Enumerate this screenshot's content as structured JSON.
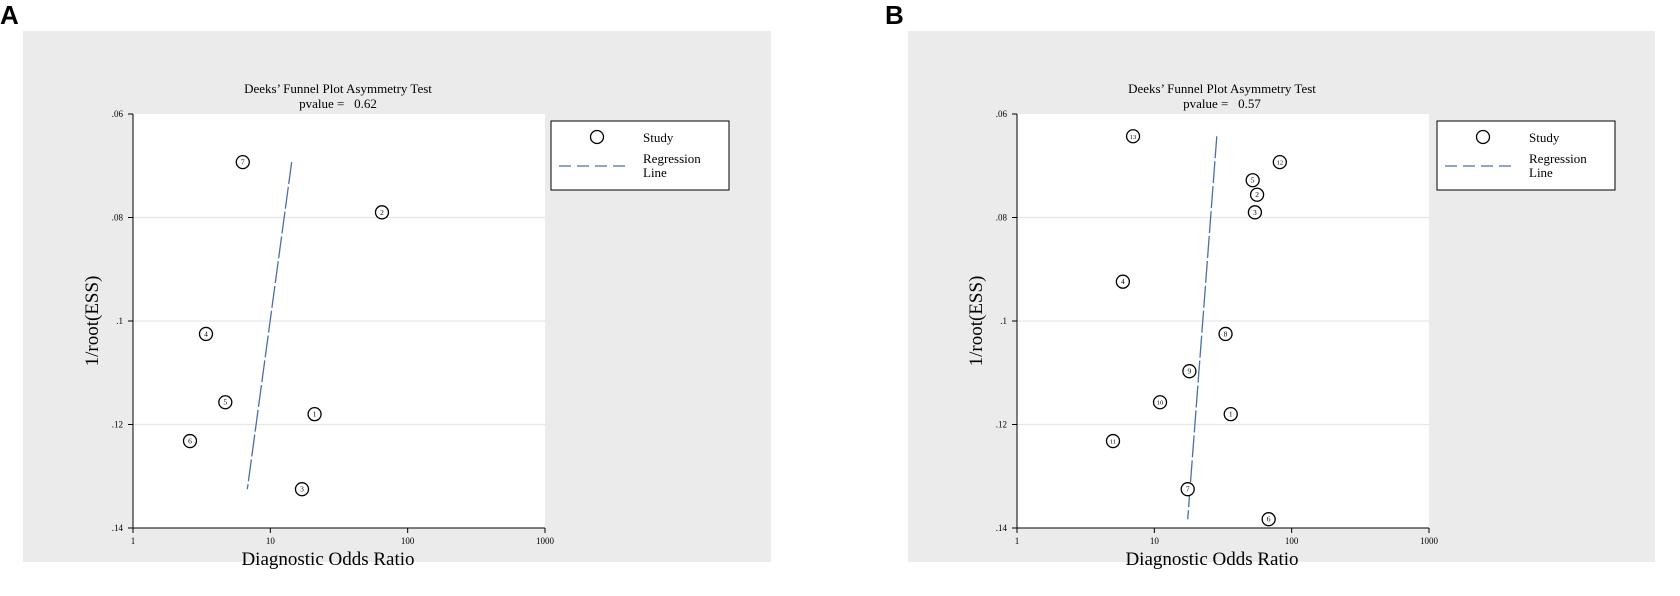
{
  "panels": [
    {
      "panel_label": "A",
      "title_line1": "Deeks’ Funnel Plot Asymmetry Test",
      "title_line2": "pvalue =   0.62",
      "legend": {
        "study_label": "Study",
        "regression_label_line1": "Regression",
        "regression_label_line2": "Line"
      }
    },
    {
      "panel_label": "B",
      "title_line1": "Deeks’ Funnel Plot Asymmetry Test",
      "title_line2": "pvalue =   0.57",
      "legend": {
        "study_label": "Study",
        "regression_label_line1": "Regression",
        "regression_label_line2": "Line"
      }
    }
  ],
  "colors": {
    "panel_background": "#ebebeb",
    "plot_background": "#ffffff",
    "gridline": "#e6e6e6",
    "regression_line": "#4a6fa5",
    "marker": "#000000"
  },
  "chart_data": [
    {
      "type": "scatter",
      "title": "Deeks’ Funnel Plot Asymmetry Test",
      "subtitle": "pvalue =   0.62",
      "xlabel": "Diagnostic Odds Ratio",
      "ylabel": "1/root(ESS)",
      "x_scale": "log",
      "xlim": [
        1,
        1000
      ],
      "ylim": [
        0.06,
        0.14
      ],
      "y_reversed": true,
      "x_ticks": [
        1,
        10,
        100,
        1000
      ],
      "x_tick_labels": [
        "1",
        "10",
        "100",
        "1000"
      ],
      "y_ticks": [
        0.06,
        0.08,
        0.1,
        0.12,
        0.14
      ],
      "y_tick_labels": [
        ".06",
        ".08",
        ".1",
        ".12",
        ".14"
      ],
      "grid": true,
      "legend_position": "right",
      "points": [
        {
          "label": "1",
          "x": 21,
          "y": 0.118
        },
        {
          "label": "2",
          "x": 65,
          "y": 0.079
        },
        {
          "label": "3",
          "x": 17,
          "y": 0.1325
        },
        {
          "label": "4",
          "x": 3.4,
          "y": 0.1025
        },
        {
          "label": "5",
          "x": 4.7,
          "y": 0.1157
        },
        {
          "label": "6",
          "x": 2.6,
          "y": 0.1232
        },
        {
          "label": "7",
          "x": 6.3,
          "y": 0.0693
        }
      ],
      "regression_line": [
        {
          "x": 14.3,
          "y": 0.0693
        },
        {
          "x": 6.8,
          "y": 0.1325
        }
      ]
    },
    {
      "type": "scatter",
      "title": "Deeks’ Funnel Plot Asymmetry Test",
      "subtitle": "pvalue =   0.57",
      "xlabel": "Diagnostic Odds Ratio",
      "ylabel": "1/root(ESS)",
      "x_scale": "log",
      "xlim": [
        1,
        1000
      ],
      "ylim": [
        0.06,
        0.14
      ],
      "y_reversed": true,
      "x_ticks": [
        1,
        10,
        100,
        1000
      ],
      "x_tick_labels": [
        "1",
        "10",
        "100",
        "1000"
      ],
      "y_ticks": [
        0.06,
        0.08,
        0.1,
        0.12,
        0.14
      ],
      "y_tick_labels": [
        ".06",
        ".08",
        ".1",
        ".12",
        ".14"
      ],
      "grid": true,
      "legend_position": "right",
      "points": [
        {
          "label": "1",
          "x": 36,
          "y": 0.118
        },
        {
          "label": "2",
          "x": 56,
          "y": 0.0756
        },
        {
          "label": "3",
          "x": 54,
          "y": 0.079
        },
        {
          "label": "4",
          "x": 5.9,
          "y": 0.0924
        },
        {
          "label": "5",
          "x": 52,
          "y": 0.0728
        },
        {
          "label": "6",
          "x": 68,
          "y": 0.1383
        },
        {
          "label": "7",
          "x": 17.5,
          "y": 0.1325
        },
        {
          "label": "8",
          "x": 33,
          "y": 0.1025
        },
        {
          "label": "9",
          "x": 18,
          "y": 0.1097
        },
        {
          "label": "10",
          "x": 11,
          "y": 0.1157
        },
        {
          "label": "11",
          "x": 5,
          "y": 0.1232
        },
        {
          "label": "12",
          "x": 82,
          "y": 0.0693
        },
        {
          "label": "13",
          "x": 7,
          "y": 0.0643
        }
      ],
      "regression_line": [
        {
          "x": 28.5,
          "y": 0.0643
        },
        {
          "x": 17.5,
          "y": 0.1383
        }
      ]
    }
  ]
}
